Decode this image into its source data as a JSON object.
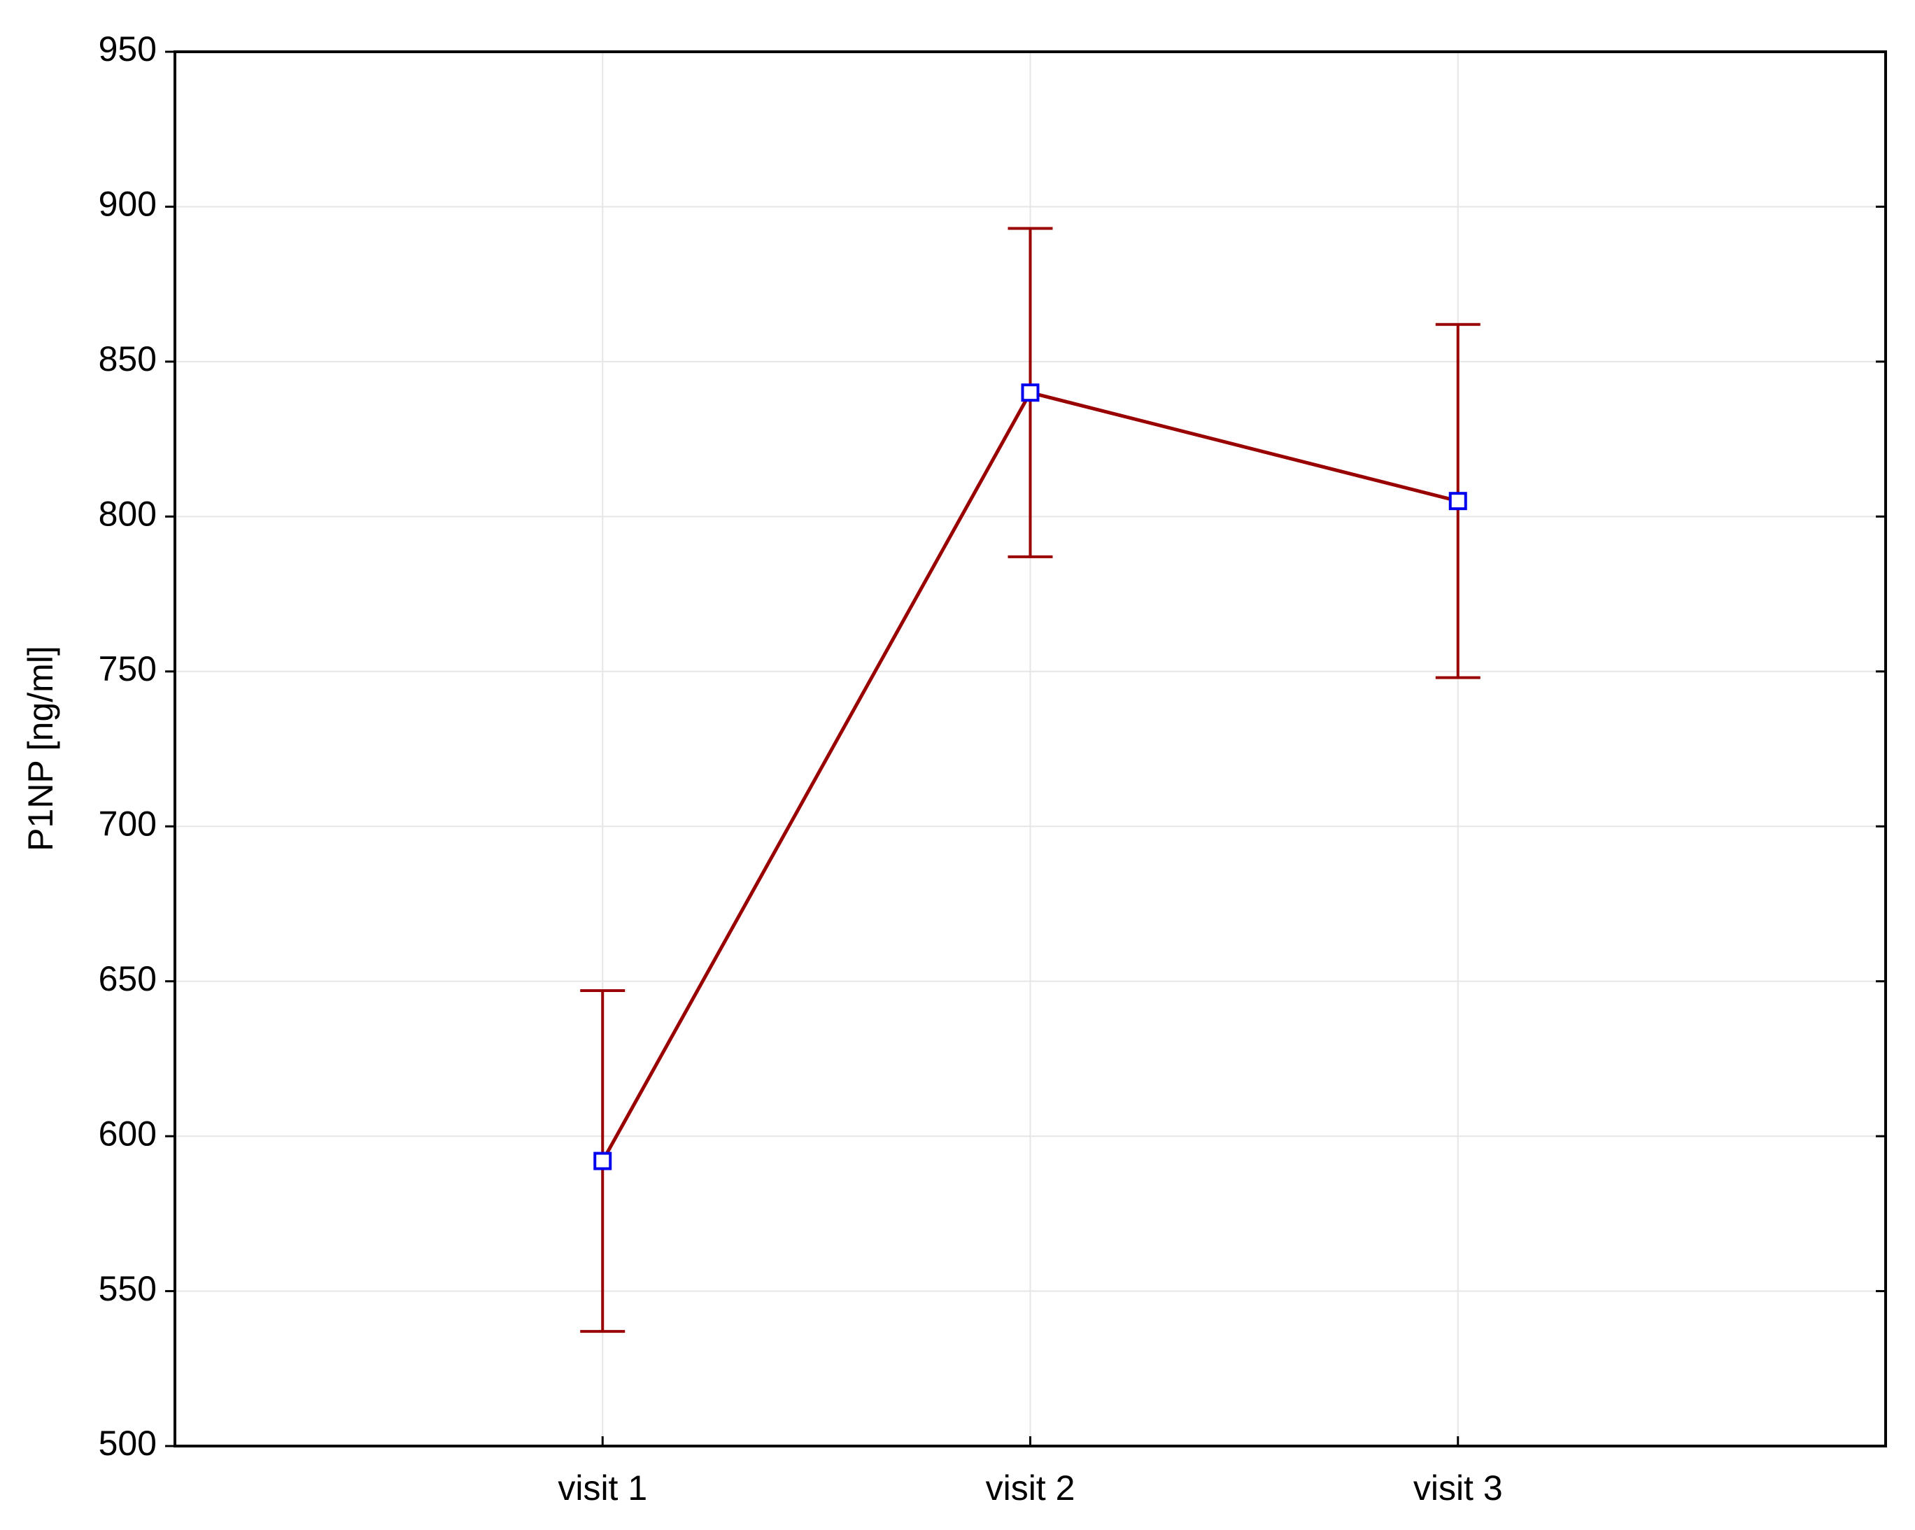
{
  "chart_data": {
    "type": "line",
    "y_label": "P1NP [ng/ml]",
    "categories": [
      "visit 1",
      "visit 2",
      "visit 3"
    ],
    "values": [
      592,
      840,
      805
    ],
    "errors": [
      55,
      53,
      57
    ],
    "color": "#990000",
    "marker_color": "#0000ee",
    "ylim": [
      500,
      950
    ],
    "yticks": [
      500,
      550,
      600,
      650,
      700,
      750,
      800,
      850,
      900,
      950
    ],
    "grid": true
  }
}
